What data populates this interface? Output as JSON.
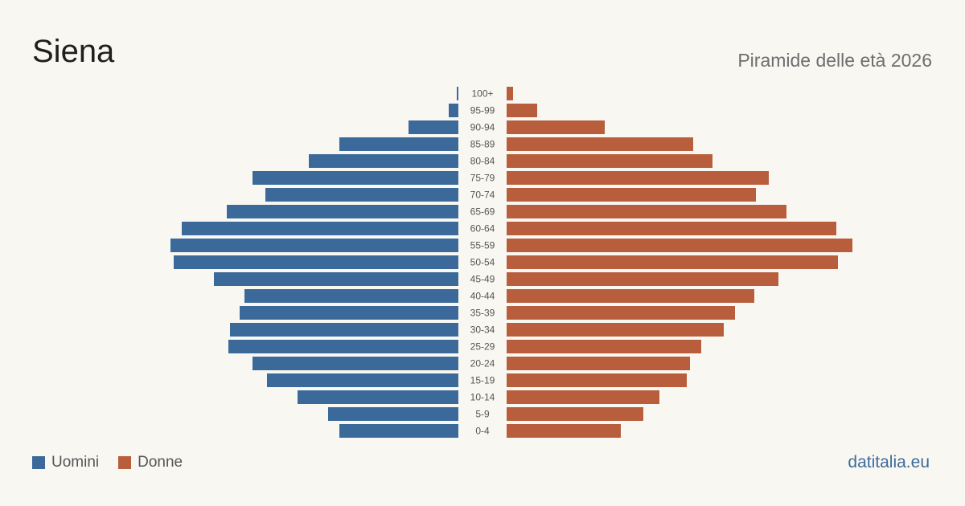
{
  "page": {
    "title": "Siena",
    "subtitle": "Piramide delle età 2026",
    "source": "datitalia.eu"
  },
  "colors": {
    "men": "#3b6a9a",
    "women": "#b95e3d",
    "background": "#f9f7f2"
  },
  "legend": {
    "men_label": "Uomini",
    "women_label": "Donne"
  },
  "chart_data": {
    "type": "bar",
    "orientation": "horizontal-diverging",
    "categories": [
      "100+",
      "95-99",
      "90-94",
      "85-89",
      "80-84",
      "75-79",
      "70-74",
      "65-69",
      "60-64",
      "55-59",
      "50-54",
      "45-49",
      "40-44",
      "35-39",
      "30-34",
      "25-29",
      "20-24",
      "15-19",
      "10-14",
      "5-9",
      "0-4"
    ],
    "series": [
      {
        "name": "Uomini",
        "side": "left",
        "values": [
          1,
          6,
          31,
          74,
          93,
          128,
          120,
          144,
          172,
          179,
          177,
          152,
          133,
          136,
          142,
          143,
          128,
          119,
          100,
          81,
          74
        ]
      },
      {
        "name": "Donne",
        "side": "right",
        "values": [
          4,
          19,
          61,
          116,
          128,
          163,
          155,
          174,
          205,
          215,
          206,
          169,
          154,
          142,
          135,
          121,
          114,
          112,
          95,
          85,
          71
        ]
      }
    ],
    "xlim": [
      0,
      215
    ],
    "grid": false,
    "legend_position": "bottom-left"
  }
}
